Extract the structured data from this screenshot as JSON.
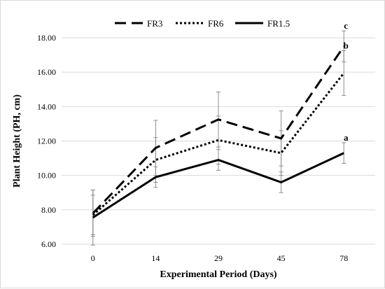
{
  "chart_data": {
    "type": "line",
    "xlabel": "Experimental Period (Days)",
    "ylabel": "Plant Height (PH, cm)",
    "categories": [
      "0",
      "14",
      "29",
      "45",
      "78"
    ],
    "ylim": [
      6,
      18
    ],
    "yticks": [
      "6.00",
      "8.00",
      "10.00",
      "12.00",
      "14.00",
      "16.00",
      "18.00"
    ],
    "grid": "horizontal",
    "legend_position": "top",
    "series": [
      {
        "name": "FR3",
        "style": "dashed",
        "values": [
          7.8,
          11.6,
          13.25,
          12.15,
          17.5
        ],
        "errors": [
          1.35,
          1.6,
          1.6,
          1.6,
          0.9
        ],
        "significance": "c"
      },
      {
        "name": "FR6",
        "style": "dotted",
        "values": [
          7.7,
          10.9,
          12.05,
          11.3,
          15.95
        ],
        "errors": [
          1.15,
          1.3,
          1.4,
          1.3,
          1.3
        ],
        "significance": "b"
      },
      {
        "name": "FR1.5",
        "style": "solid",
        "values": [
          7.55,
          9.9,
          10.9,
          9.6,
          11.3
        ],
        "errors": [
          1.6,
          0.6,
          0.6,
          0.6,
          0.6
        ],
        "significance": "a"
      }
    ]
  }
}
